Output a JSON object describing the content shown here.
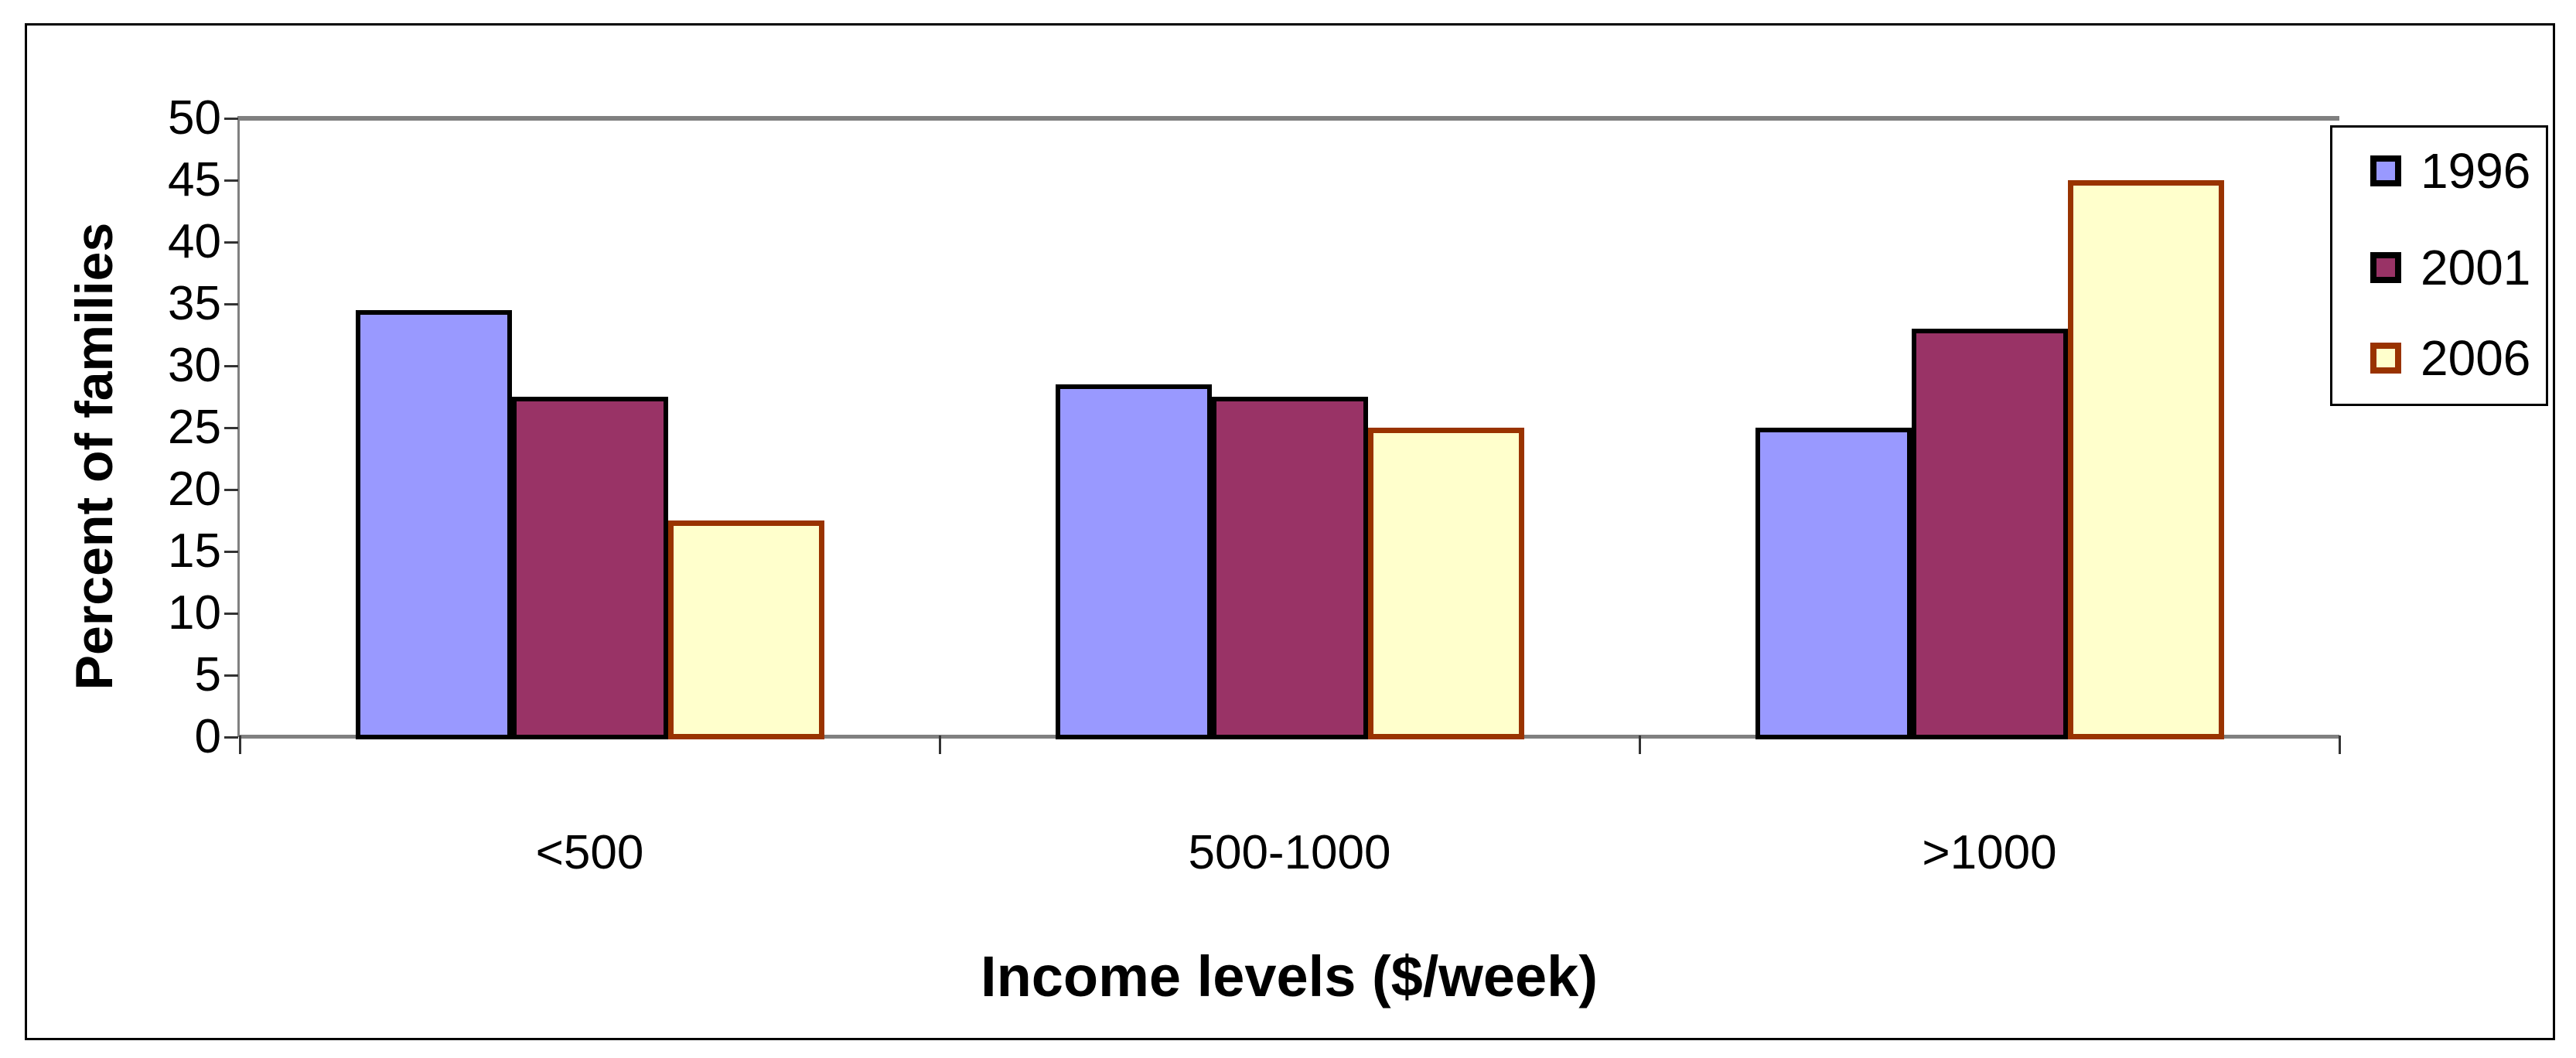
{
  "chart_data": {
    "type": "bar",
    "categories": [
      "<500",
      "500-1000",
      ">1000"
    ],
    "series": [
      {
        "name": "1996",
        "fill": "#9999FF",
        "border": "#000000",
        "values": [
          34.5,
          28.5,
          25
        ]
      },
      {
        "name": "2001",
        "fill": "#993366",
        "border": "#000000",
        "values": [
          27.5,
          27.5,
          33
        ]
      },
      {
        "name": "2006",
        "fill": "#FFFFCC",
        "border": "#993300",
        "values": [
          17.5,
          25,
          45
        ]
      }
    ],
    "title": "",
    "xlabel": "Income levels ($/week)",
    "ylabel": "Percent of families",
    "ylim": [
      0,
      50
    ],
    "ytick_step": 5,
    "ytick_labels": [
      "0",
      "5",
      "10",
      "15",
      "20",
      "25",
      "30",
      "35",
      "40",
      "45",
      "50"
    ],
    "grid": false,
    "legend_position": "top-right",
    "colors": {
      "axis_line": "#808080",
      "tick_mark": "#333333",
      "text": "#000000",
      "background": "#FFFFFF",
      "frame_border": "#000000"
    }
  }
}
